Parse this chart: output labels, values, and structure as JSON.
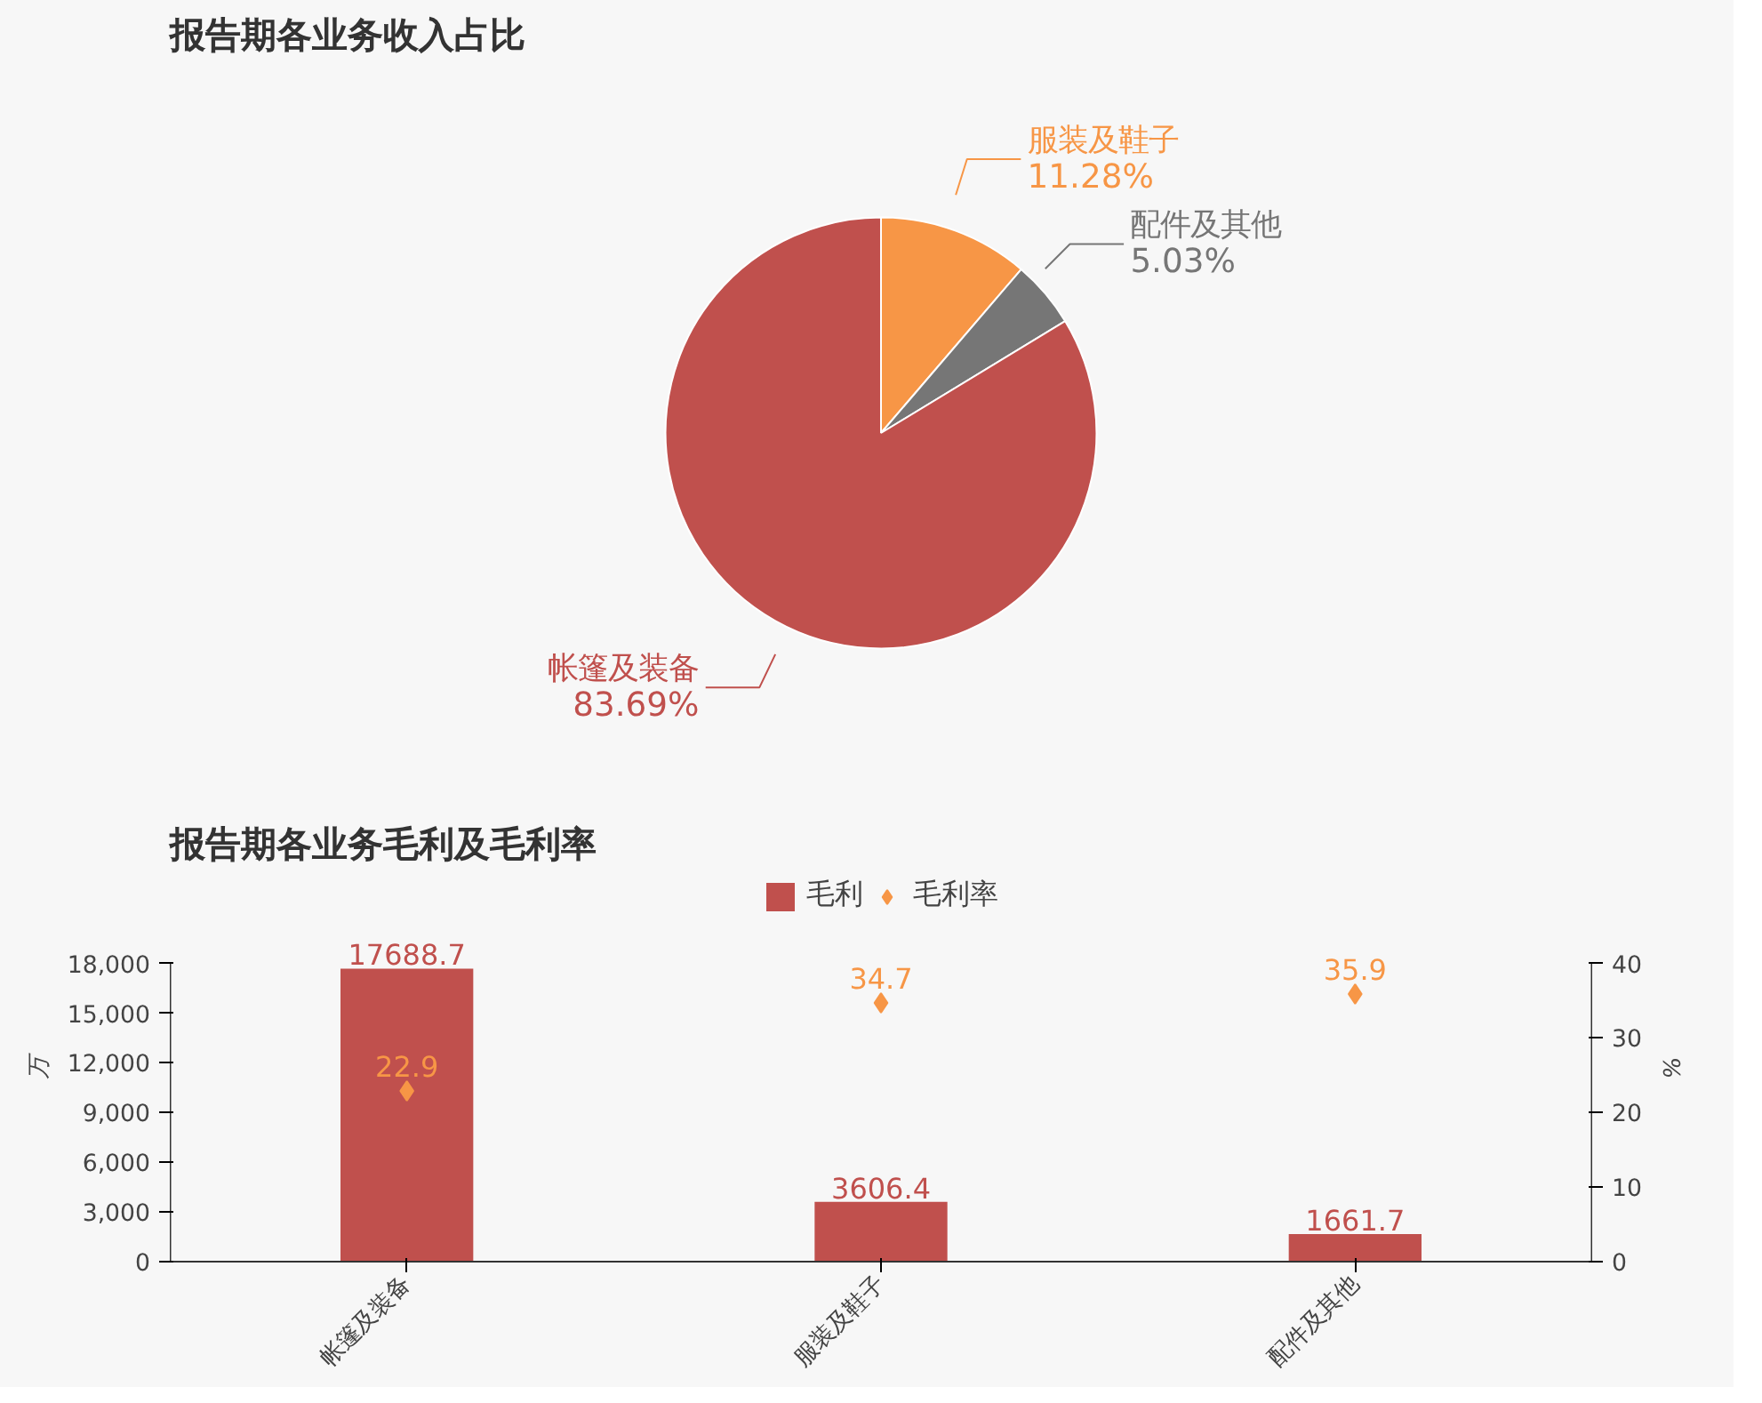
{
  "chart_data": [
    {
      "type": "pie",
      "title": "报告期各业务收入占比",
      "categories": [
        "服装及鞋子",
        "配件及其他",
        "帐篷及装备"
      ],
      "values": [
        11.28,
        5.03,
        83.69
      ],
      "colors": [
        "#f79646",
        "#767676",
        "#c0504d"
      ],
      "value_labels": [
        "11.28%",
        "5.03%",
        "83.69%"
      ]
    },
    {
      "type": "bar",
      "title": "报告期各业务毛利及毛利率",
      "categories": [
        "帐篷及装备",
        "服装及鞋子",
        "配件及其他"
      ],
      "ylabel": "万",
      "y2label": "%",
      "ylim": [
        0,
        18000
      ],
      "yticks": [
        0,
        {
          "value": 3000,
          "label": "3,000"
        },
        {
          "value": 6000,
          "label": "6,000"
        },
        {
          "value": 9000,
          "label": "9,000"
        },
        {
          "value": 12000,
          "label": "12,000"
        },
        {
          "value": 15000,
          "label": "15,000"
        },
        {
          "value": 18000,
          "label": "18,000"
        }
      ],
      "y2lim": [
        0,
        40
      ],
      "y2ticks": [
        0,
        10,
        20,
        30,
        40
      ],
      "legend": "top",
      "data_labels": true,
      "grid": false,
      "series": [
        {
          "name": "毛利",
          "type": "bar",
          "color": "#c0504d",
          "values": [
            17688.7,
            3606.4,
            1661.7
          ]
        },
        {
          "name": "毛利率",
          "type": "scatter",
          "axis": "y2",
          "marker": "diamond",
          "color": "#f79646",
          "values": [
            22.9,
            34.7,
            35.9
          ]
        }
      ]
    }
  ]
}
